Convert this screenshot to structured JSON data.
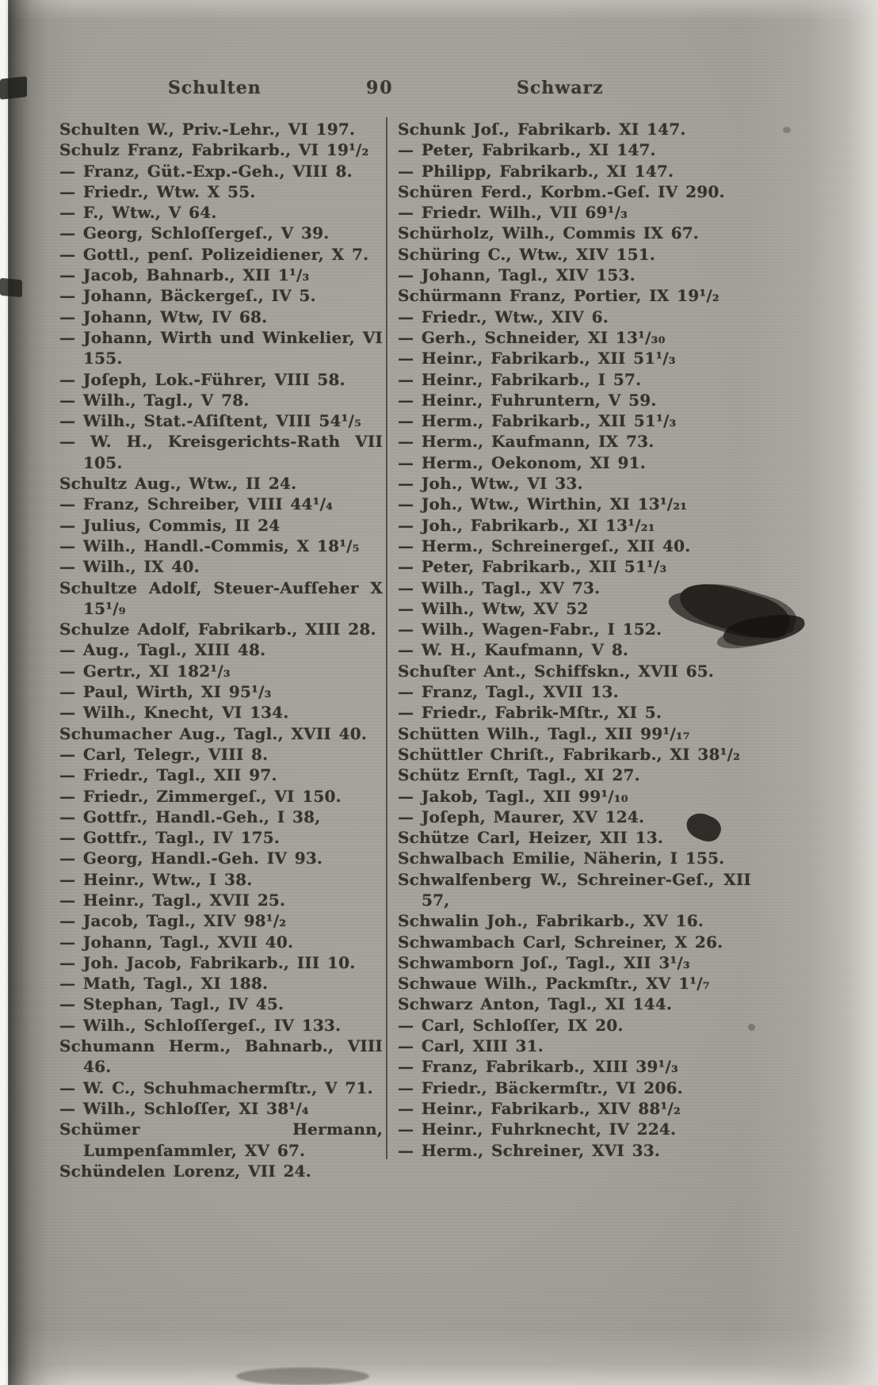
{
  "page_header": {
    "left_word": "Schulten",
    "page_number": "90",
    "right_word": "Schwarz"
  },
  "columns": {
    "left": {
      "entries": [
        "Schulten W., Priv.-Lehr., VI 197.",
        "Schulz Franz, Fabrikarb., VI 19¹/₂",
        "— Franz, Güt.-Exp.-Geh., VIII 8.",
        "— Friedr., Wtw. X 55.",
        "— F., Wtw., V 64.",
        "— Georg, Schloſſergeſ., V 39.",
        "— Gottl., penſ. Polizeidiener, X 7.",
        "— Jacob, Bahnarb., XII 1¹/₃",
        "— Johann, Bäckergeſ., IV 5.",
        "— Johann, Wtw, IV 68.",
        "— Johann, Wirth und Winkelier, VI 155.",
        "— Joſeph, Lok.-Führer, VIII 58.",
        "— Wilh., Tagl., V 78.",
        "— Wilh., Stat.-Aſiſtent, VIII 54¹/₅",
        "— W. H., Kreisgerichts-Rath VII 105.",
        "Schultz Aug., Wtw., II 24.",
        "— Franz, Schreiber, VIII 44¹/₄",
        "— Julius, Commis, II 24",
        "— Wilh., Handl.-Commis, X 18¹/₅",
        "— Wilh., IX 40.",
        "Schultze Adolf, Steuer-Aufſeher X 15¹/₉",
        "Schulze Adolf, Fabrikarb., XIII 28.",
        "— Aug., Tagl., XIII 48.",
        "— Gertr., XI 182¹/₃",
        "— Paul, Wirth, XI 95¹/₃",
        "— Wilh., Knecht, VI 134.",
        "Schumacher Aug., Tagl., XVII 40.",
        "— Carl, Telegr., VIII 8.",
        "— Friedr., Tagl., XII 97.",
        "— Friedr., Zimmergeſ., VI 150.",
        "— Gottfr., Handl.-Geh., I 38,",
        "— Gottfr., Tagl., IV 175.",
        "— Georg, Handl.-Geh. IV 93.",
        "— Heinr., Wtw., I 38.",
        "— Heinr., Tagl., XVII 25.",
        "— Jacob, Tagl., XIV 98¹/₂",
        "— Johann, Tagl., XVII 40.",
        "— Joh. Jacob, Fabrikarb., III 10.",
        "— Math, Tagl., XI 188.",
        "— Stephan, Tagl., IV 45.",
        "— Wilh., Schloſſergeſ., IV 133.",
        "Schumann Herm., Bahnarb., VIII 46.",
        "— W. C., Schuhmachermſtr., V 71.",
        "— Wilh., Schloſſer, XI 38¹/₄",
        "Schümer Hermann, Lumpenſammler, XV 67.",
        "Schündelen Lorenz, VII 24."
      ]
    },
    "right": {
      "entries": [
        "Schunk Joſ., Fabrikarb. XI 147.",
        "— Peter, Fabrikarb., XI 147.",
        "— Philipp, Fabrikarb., XI 147.",
        "Schüren Ferd., Korbm.-Geſ. IV 290.",
        "— Friedr. Wilh., VII 69¹/₃",
        "Schürholz, Wilh., Commis IX 67.",
        "Schüring C., Wtw., XIV 151.",
        "— Johann, Tagl., XIV 153.",
        "Schürmann Franz, Portier, IX 19¹/₂",
        "— Friedr., Wtw., XIV 6.",
        "— Gerh., Schneider, XI 13¹/₃₀",
        "— Heinr., Fabrikarb., XII 51¹/₃",
        "— Heinr., Fabrikarb., I 57.",
        "— Heinr., Fuhruntern, V 59.",
        "— Herm., Fabrikarb., XII 51¹/₃",
        "— Herm., Kaufmann, IX 73.",
        "— Herm., Oekonom, XI 91.",
        "— Joh., Wtw., VI 33.",
        "— Joh., Wtw., Wirthin, XI 13¹/₂₁",
        "— Joh., Fabrikarb., XI 13¹/₂₁",
        "— Herm., Schreinergeſ., XII 40.",
        "— Peter, Fabrikarb., XII 51¹/₃",
        "— Wilh., Tagl., XV 73.",
        "— Wilh., Wtw, XV 52",
        "— Wilh., Wagen-Fabr., I 152.",
        "— W. H., Kaufmann, V 8.",
        "Schuſter Ant., Schiffskn., XVII 65.",
        "— Franz, Tagl., XVII 13.",
        "— Friedr., Fabrik-Mſtr., XI 5.",
        "Schütten Wilh., Tagl., XII 99¹/₁₇",
        "Schüttler Chriſt., Fabrikarb., XI 38¹/₂",
        "Schütz Ernſt, Tagl., XI 27.",
        "— Jakob, Tagl., XII 99¹/₁₀",
        "— Joſeph, Maurer, XV 124.",
        "Schütze Carl, Heizer, XII 13.",
        "Schwalbach Emilie, Näherin, I 155.",
        "Schwalfenberg W., Schreiner-Geſ., XII 57,",
        "Schwalin Joh., Fabrikarb., XV 16.",
        "Schwambach Carl, Schreiner, X 26.",
        "Schwamborn Joſ., Tagl., XII 3¹/₃",
        "Schwaue Wilh., Packmſtr., XV 1¹/₇",
        "Schwarz Anton, Tagl., XI 144.",
        "— Carl, Schloſſer, IX 20.",
        "— Carl, XIII 31.",
        "— Franz, Fabrikarb., XIII 39¹/₃",
        "— Friedr., Bäckermſtr., VI 206.",
        "— Heinr., Fabrikarb., XIV 88¹/₂",
        "— Heinr., Fuhrknecht, IV 224.",
        "— Herm., Schreiner, XVI 33."
      ]
    }
  },
  "colors": {
    "paper": "#a5a29c",
    "ink": "#34322d"
  }
}
